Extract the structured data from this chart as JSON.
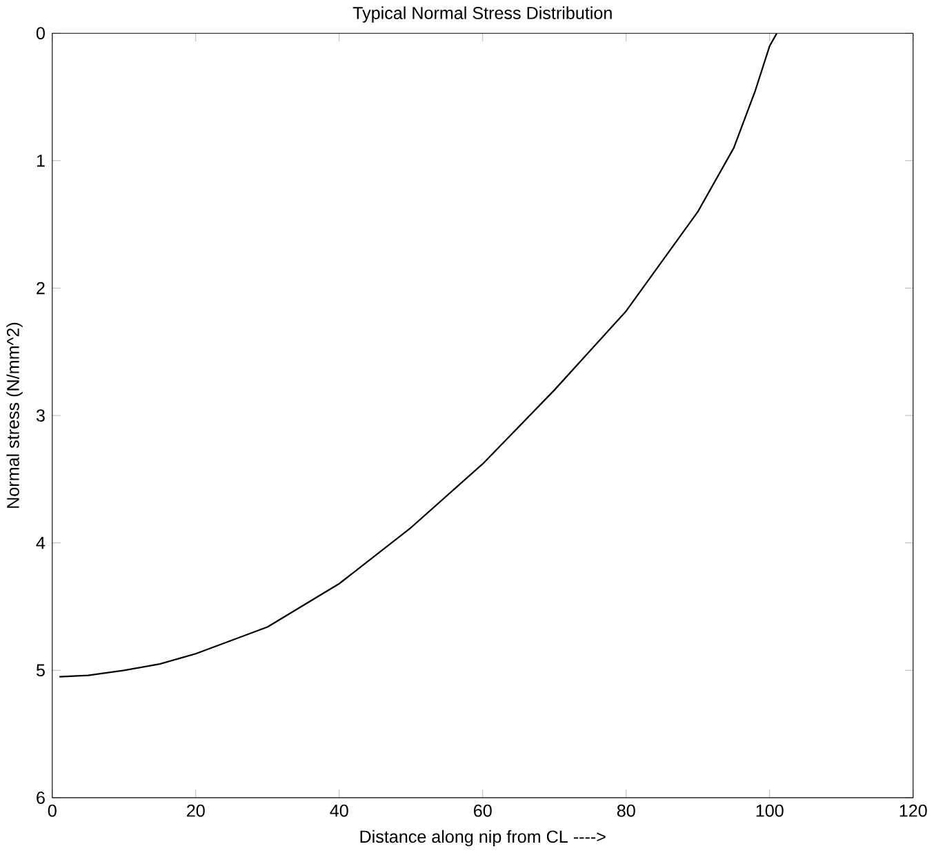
{
  "chart_data": {
    "type": "line",
    "title": "Typical Normal Stress Distribution",
    "xlabel": "Distance along nip from CL ---->",
    "ylabel": "Normal stress (N/mm^2)",
    "x": [
      1,
      5,
      10,
      15,
      20,
      30,
      40,
      50,
      60,
      70,
      80,
      90,
      95,
      98,
      100,
      101
    ],
    "series": [
      {
        "color": "#000000",
        "values": [
          5.05,
          5.04,
          5.0,
          4.95,
          4.87,
          4.66,
          4.32,
          3.88,
          3.38,
          2.8,
          2.18,
          1.4,
          0.9,
          0.45,
          0.1,
          0.0
        ]
      }
    ],
    "xlim": [
      0,
      120
    ],
    "ylim": [
      6,
      0
    ],
    "xticks": [
      0,
      20,
      40,
      60,
      80,
      100,
      120
    ],
    "yticks": [
      0,
      1,
      2,
      3,
      4,
      5,
      6
    ],
    "grid": false,
    "marker": "none",
    "line_style": "solid"
  }
}
